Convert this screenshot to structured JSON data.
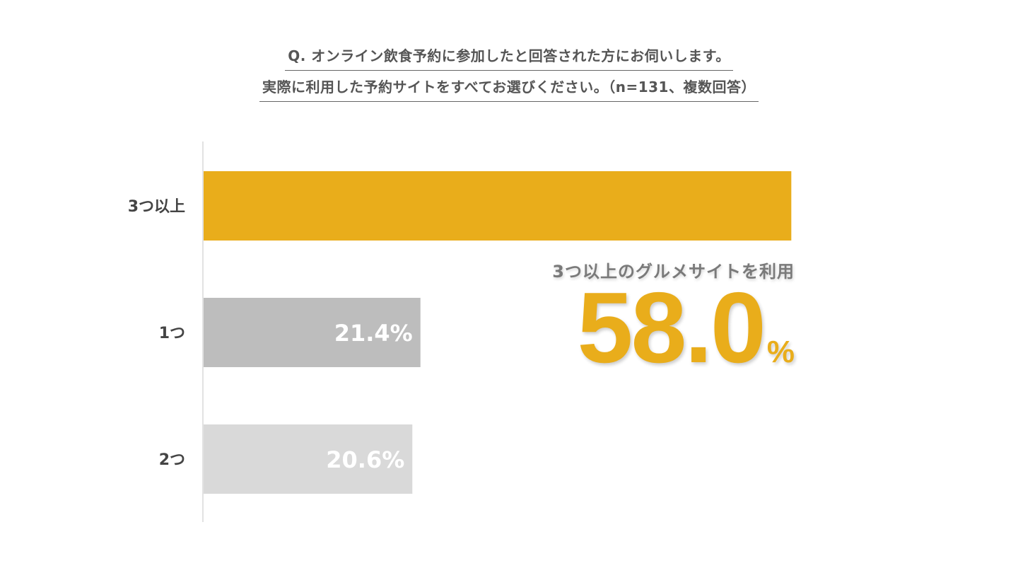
{
  "title": {
    "line1": "Q. オンライン飲食予約に参加したと回答された方にお伺いします。",
    "line2": "実際に利用した予約サイトをすべてお選びください。（n=131、複数回答）"
  },
  "callout": {
    "caption": "3つ以上のグルメサイトを利用",
    "value": "58.0",
    "unit": "%"
  },
  "colors": {
    "highlight": "#E9AD1B",
    "bar_1": "#BDBDBD",
    "bar_2": "#D9D9D9",
    "axis": "#E2E2E2"
  },
  "chart_data": {
    "type": "bar",
    "orientation": "horizontal",
    "categories": [
      "3つ以上",
      "1つ",
      "2つ"
    ],
    "values": [
      58.0,
      21.4,
      20.6
    ],
    "data_labels": [
      "",
      "21.4%",
      "20.6%"
    ],
    "unit": "%",
    "xlim": [
      0,
      60
    ],
    "grid": false,
    "legend": "none"
  }
}
